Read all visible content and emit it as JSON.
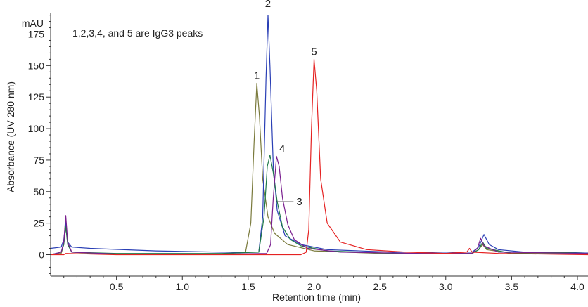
{
  "chart_data": {
    "type": "line",
    "ylabel": "Absorbance (UV 280 nm)",
    "yunit": "mAU",
    "xlabel": "Retention time (min)",
    "xlim": [
      0.0,
      4.08
    ],
    "ylim": [
      -17,
      192
    ],
    "xticks": [
      0.5,
      1.0,
      1.5,
      2.0,
      2.5,
      3.0,
      3.5,
      4.0
    ],
    "xtick_labels": [
      "0.5",
      "1.0",
      "1.5",
      "2.0",
      "2.5",
      "3.0",
      "3.5",
      "4.0"
    ],
    "yticks": [
      0,
      25,
      50,
      75,
      100,
      125,
      150,
      175
    ],
    "ytick_labels": [
      "0",
      "25",
      "50",
      "75",
      "100",
      "125",
      "150",
      "175"
    ],
    "annotation": "1,2,3,4, and 5 are IgG3 peaks",
    "peak_labels": [
      {
        "text": "1",
        "x": 1.565,
        "y": 136
      },
      {
        "text": "2",
        "x": 1.65,
        "y": 193
      },
      {
        "text": "3",
        "x": 1.78,
        "y": 42
      },
      {
        "text": "4",
        "x": 1.715,
        "y": 78
      },
      {
        "text": "5",
        "x": 2.0,
        "y": 155
      }
    ],
    "series": [
      {
        "color": "#7a7a3c",
        "points": [
          [
            0.0,
            0
          ],
          [
            0.08,
            1
          ],
          [
            0.1,
            8
          ],
          [
            0.115,
            24
          ],
          [
            0.13,
            8
          ],
          [
            0.16,
            2
          ],
          [
            0.3,
            1
          ],
          [
            0.8,
            0.5
          ],
          [
            1.3,
            0.5
          ],
          [
            1.48,
            2
          ],
          [
            1.52,
            25
          ],
          [
            1.545,
            90
          ],
          [
            1.565,
            136
          ],
          [
            1.585,
            110
          ],
          [
            1.61,
            60
          ],
          [
            1.65,
            30
          ],
          [
            1.7,
            17
          ],
          [
            1.8,
            8
          ],
          [
            2.0,
            3
          ],
          [
            2.5,
            1
          ],
          [
            3.0,
            1
          ],
          [
            3.2,
            1
          ],
          [
            3.25,
            4
          ],
          [
            3.28,
            8
          ],
          [
            3.31,
            4
          ],
          [
            3.5,
            1
          ],
          [
            4.08,
            1
          ]
        ]
      },
      {
        "color": "#2a3fb5",
        "points": [
          [
            0.0,
            5
          ],
          [
            0.08,
            6
          ],
          [
            0.1,
            12
          ],
          [
            0.115,
            26
          ],
          [
            0.13,
            10
          ],
          [
            0.16,
            6
          ],
          [
            0.3,
            5
          ],
          [
            0.8,
            3
          ],
          [
            1.3,
            2
          ],
          [
            1.58,
            2
          ],
          [
            1.61,
            30
          ],
          [
            1.635,
            140
          ],
          [
            1.65,
            190
          ],
          [
            1.665,
            150
          ],
          [
            1.69,
            70
          ],
          [
            1.72,
            35
          ],
          [
            1.78,
            15
          ],
          [
            1.9,
            8
          ],
          [
            2.1,
            4
          ],
          [
            2.6,
            2
          ],
          [
            3.0,
            2
          ],
          [
            3.2,
            2
          ],
          [
            3.25,
            6
          ],
          [
            3.29,
            16
          ],
          [
            3.33,
            8
          ],
          [
            3.4,
            4
          ],
          [
            3.6,
            2
          ],
          [
            4.08,
            2
          ]
        ]
      },
      {
        "color": "#1f7a4a",
        "points": [
          [
            0.0,
            0
          ],
          [
            0.08,
            2
          ],
          [
            0.1,
            8
          ],
          [
            0.115,
            22
          ],
          [
            0.13,
            8
          ],
          [
            0.16,
            2
          ],
          [
            0.5,
            1
          ],
          [
            1.3,
            1
          ],
          [
            1.58,
            2
          ],
          [
            1.62,
            30
          ],
          [
            1.645,
            70
          ],
          [
            1.665,
            79
          ],
          [
            1.69,
            65
          ],
          [
            1.72,
            42
          ],
          [
            1.76,
            22
          ],
          [
            1.82,
            12
          ],
          [
            1.9,
            7
          ],
          [
            2.1,
            3
          ],
          [
            2.6,
            1
          ],
          [
            3.0,
            1
          ],
          [
            3.2,
            1
          ],
          [
            3.25,
            4
          ],
          [
            3.28,
            10
          ],
          [
            3.31,
            5
          ],
          [
            3.5,
            1
          ],
          [
            3.8,
            2
          ],
          [
            4.08,
            1
          ]
        ]
      },
      {
        "color": "#7a1f8f",
        "points": [
          [
            0.0,
            0
          ],
          [
            0.08,
            2
          ],
          [
            0.1,
            10
          ],
          [
            0.115,
            31
          ],
          [
            0.13,
            10
          ],
          [
            0.16,
            2
          ],
          [
            0.5,
            0.5
          ],
          [
            1.3,
            0.5
          ],
          [
            1.64,
            1
          ],
          [
            1.67,
            8
          ],
          [
            1.69,
            45
          ],
          [
            1.715,
            78
          ],
          [
            1.735,
            70
          ],
          [
            1.76,
            45
          ],
          [
            1.8,
            24
          ],
          [
            1.85,
            12
          ],
          [
            1.95,
            5
          ],
          [
            2.2,
            2
          ],
          [
            2.8,
            1
          ],
          [
            3.2,
            1
          ],
          [
            3.24,
            5
          ],
          [
            3.265,
            13
          ],
          [
            3.29,
            7
          ],
          [
            3.4,
            2
          ],
          [
            4.08,
            1
          ]
        ]
      },
      {
        "color": "#e52222",
        "points": [
          [
            0.0,
            0
          ],
          [
            0.1,
            0
          ],
          [
            0.115,
            1
          ],
          [
            0.5,
            0
          ],
          [
            1.9,
            0
          ],
          [
            1.94,
            2
          ],
          [
            1.96,
            20
          ],
          [
            1.98,
            100
          ],
          [
            2.0,
            155
          ],
          [
            2.02,
            130
          ],
          [
            2.05,
            60
          ],
          [
            2.1,
            25
          ],
          [
            2.2,
            10
          ],
          [
            2.4,
            4
          ],
          [
            2.7,
            2
          ],
          [
            3.0,
            1
          ],
          [
            3.16,
            2
          ],
          [
            3.18,
            5
          ],
          [
            3.2,
            2
          ],
          [
            3.4,
            1
          ],
          [
            4.08,
            0
          ]
        ]
      }
    ]
  }
}
